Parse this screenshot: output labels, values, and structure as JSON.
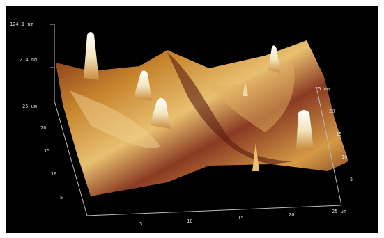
{
  "z_axis": {
    "labels": [
      "124.1 nm",
      "2.4 nm"
    ]
  },
  "y_axis": {
    "labels": [
      "25 um",
      "20",
      "15",
      "10",
      "5"
    ]
  },
  "x_axis": {
    "labels": [
      "5",
      "10",
      "15",
      "20",
      "25 um"
    ]
  },
  "right_axis": {
    "labels": [
      "25 um",
      "20",
      "15",
      "10",
      "5"
    ]
  }
}
